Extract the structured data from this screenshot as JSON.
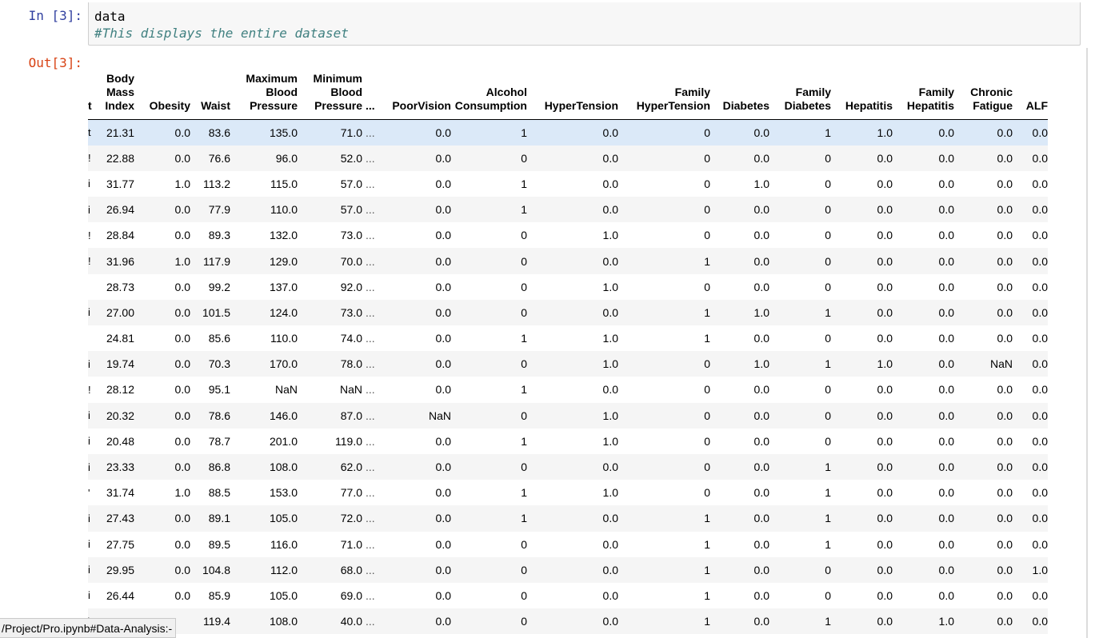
{
  "cell": {
    "in_prompt": "In [3]:",
    "out_prompt": "Out[3]:",
    "code_line1": "data",
    "code_line2": "#This displays the entire dataset"
  },
  "table": {
    "columns": [
      "Body Mass Index",
      "Obesity",
      "Waist",
      "Maximum Blood Pressure",
      "Minimum Blood Pressure",
      "...",
      "PoorVision",
      "Alcohol Consumption",
      "HyperTension",
      "Family HyperTension",
      "Diabetes",
      "Family Diabetes",
      "Hepatitis",
      "Family Hepatitis",
      "Chronic Fatigue",
      "ALF"
    ],
    "rows": [
      [
        "21.31",
        "0.0",
        "83.6",
        "135.0",
        "71.0",
        "...",
        "0.0",
        "1",
        "0.0",
        "0",
        "0.0",
        "1",
        "1.0",
        "0.0",
        "0.0",
        "0.0"
      ],
      [
        "22.88",
        "0.0",
        "76.6",
        "96.0",
        "52.0",
        "...",
        "0.0",
        "0",
        "0.0",
        "0",
        "0.0",
        "0",
        "0.0",
        "0.0",
        "0.0",
        "0.0"
      ],
      [
        "31.77",
        "1.0",
        "113.2",
        "115.0",
        "57.0",
        "...",
        "0.0",
        "1",
        "0.0",
        "0",
        "1.0",
        "0",
        "0.0",
        "0.0",
        "0.0",
        "0.0"
      ],
      [
        "26.94",
        "0.0",
        "77.9",
        "110.0",
        "57.0",
        "...",
        "0.0",
        "1",
        "0.0",
        "0",
        "0.0",
        "0",
        "0.0",
        "0.0",
        "0.0",
        "0.0"
      ],
      [
        "28.84",
        "0.0",
        "89.3",
        "132.0",
        "73.0",
        "...",
        "0.0",
        "0",
        "1.0",
        "0",
        "0.0",
        "0",
        "0.0",
        "0.0",
        "0.0",
        "0.0"
      ],
      [
        "31.96",
        "1.0",
        "117.9",
        "129.0",
        "70.0",
        "...",
        "0.0",
        "0",
        "0.0",
        "1",
        "0.0",
        "0",
        "0.0",
        "0.0",
        "0.0",
        "0.0"
      ],
      [
        "28.73",
        "0.0",
        "99.2",
        "137.0",
        "92.0",
        "...",
        "0.0",
        "0",
        "1.0",
        "0",
        "0.0",
        "0",
        "0.0",
        "0.0",
        "0.0",
        "0.0"
      ],
      [
        "27.00",
        "0.0",
        "101.5",
        "124.0",
        "73.0",
        "...",
        "0.0",
        "0",
        "0.0",
        "1",
        "1.0",
        "1",
        "0.0",
        "0.0",
        "0.0",
        "0.0"
      ],
      [
        "24.81",
        "0.0",
        "85.6",
        "110.0",
        "74.0",
        "...",
        "0.0",
        "1",
        "1.0",
        "1",
        "0.0",
        "0",
        "0.0",
        "0.0",
        "0.0",
        "0.0"
      ],
      [
        "19.74",
        "0.0",
        "70.3",
        "170.0",
        "78.0",
        "...",
        "0.0",
        "0",
        "1.0",
        "0",
        "1.0",
        "1",
        "1.0",
        "0.0",
        "NaN",
        "0.0"
      ],
      [
        "28.12",
        "0.0",
        "95.1",
        "NaN",
        "NaN",
        "...",
        "0.0",
        "1",
        "0.0",
        "0",
        "0.0",
        "0",
        "0.0",
        "0.0",
        "0.0",
        "0.0"
      ],
      [
        "20.32",
        "0.0",
        "78.6",
        "146.0",
        "87.0",
        "...",
        "NaN",
        "0",
        "1.0",
        "0",
        "0.0",
        "0",
        "0.0",
        "0.0",
        "0.0",
        "0.0"
      ],
      [
        "20.48",
        "0.0",
        "78.7",
        "201.0",
        "119.0",
        "...",
        "0.0",
        "1",
        "1.0",
        "0",
        "0.0",
        "0",
        "0.0",
        "0.0",
        "0.0",
        "0.0"
      ],
      [
        "23.33",
        "0.0",
        "86.8",
        "108.0",
        "62.0",
        "...",
        "0.0",
        "0",
        "0.0",
        "0",
        "0.0",
        "1",
        "0.0",
        "0.0",
        "0.0",
        "0.0"
      ],
      [
        "31.74",
        "1.0",
        "88.5",
        "153.0",
        "77.0",
        "...",
        "0.0",
        "1",
        "1.0",
        "0",
        "0.0",
        "1",
        "0.0",
        "0.0",
        "0.0",
        "0.0"
      ],
      [
        "27.43",
        "0.0",
        "89.1",
        "105.0",
        "72.0",
        "...",
        "0.0",
        "1",
        "0.0",
        "1",
        "0.0",
        "1",
        "0.0",
        "0.0",
        "0.0",
        "0.0"
      ],
      [
        "27.75",
        "0.0",
        "89.5",
        "116.0",
        "71.0",
        "...",
        "0.0",
        "0",
        "0.0",
        "1",
        "0.0",
        "1",
        "0.0",
        "0.0",
        "0.0",
        "0.0"
      ],
      [
        "29.95",
        "0.0",
        "104.8",
        "112.0",
        "68.0",
        "...",
        "0.0",
        "0",
        "0.0",
        "1",
        "0.0",
        "0",
        "0.0",
        "0.0",
        "0.0",
        "1.0"
      ],
      [
        "26.44",
        "0.0",
        "85.9",
        "105.0",
        "69.0",
        "...",
        "0.0",
        "0",
        "0.0",
        "1",
        "0.0",
        "0",
        "0.0",
        "0.0",
        "0.0",
        "0.0"
      ],
      [
        "",
        "",
        "119.4",
        "108.0",
        "40.0",
        "...",
        "0.0",
        "0",
        "0.0",
        "1",
        "0.0",
        "1",
        "0.0",
        "1.0",
        "0.0",
        "0.0"
      ]
    ],
    "index_marks": [
      "t",
      "!",
      "i",
      "i",
      "!",
      "!",
      "",
      "i",
      "",
      "i",
      "!",
      "i",
      "i",
      "i",
      "'",
      "i",
      "i",
      "i",
      "i",
      ")"
    ]
  },
  "status_bar": {
    "text": "/Project/Pro.ipynb#Data-Analysis:-"
  }
}
